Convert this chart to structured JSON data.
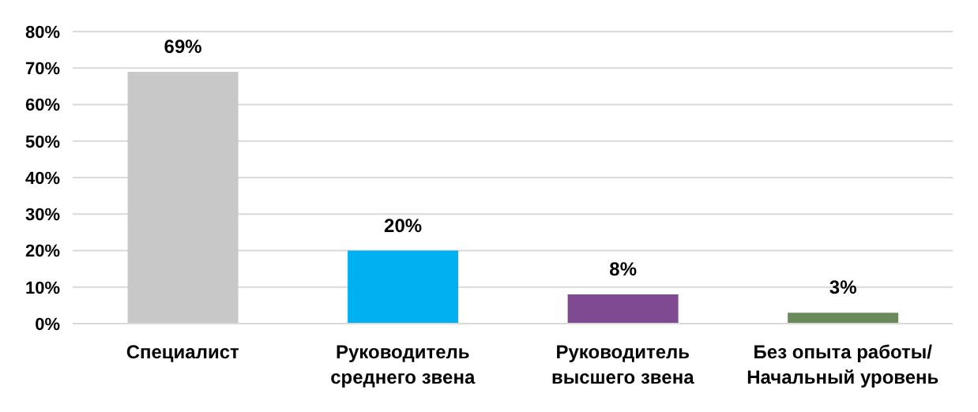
{
  "chart_data": {
    "type": "bar",
    "categories": [
      "Специалист",
      "Руководитель среднего звена",
      "Руководитель высшего звена",
      "Без опыта работы/ Начальный уровень"
    ],
    "values": [
      69,
      20,
      8,
      3
    ],
    "colors": [
      "#c8c8c8",
      "#00b0f0",
      "#7f4a92",
      "#6a8a5c"
    ],
    "value_labels": [
      "69%",
      "20%",
      "8%",
      "3%"
    ],
    "ylim": [
      0,
      80
    ],
    "yticks": [
      {
        "value": 0,
        "label": "0%"
      },
      {
        "value": 10,
        "label": "10%"
      },
      {
        "value": 20,
        "label": "20%"
      },
      {
        "value": 30,
        "label": "30%"
      },
      {
        "value": 40,
        "label": "40%"
      },
      {
        "value": 50,
        "label": "50%"
      },
      {
        "value": 60,
        "label": "60%"
      },
      {
        "value": 70,
        "label": "70%"
      },
      {
        "value": 80,
        "label": "80%"
      }
    ],
    "grid": "y"
  }
}
